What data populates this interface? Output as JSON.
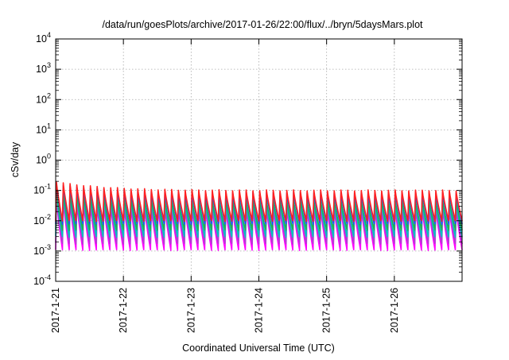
{
  "chart_data": {
    "type": "line",
    "title": "/data/run/goesPlots/archive/2017-01-26/22:00/flux/../bryn/5daysMars.plot",
    "xlabel": "Coordinated Universal Time (UTC)",
    "ylabel": "cSv/day",
    "y_scale": "log",
    "ylim": [
      0.0001,
      10000
    ],
    "y_ticks": [
      {
        "base": "10",
        "exp": "-4",
        "value": 0.0001
      },
      {
        "base": "10",
        "exp": "-3",
        "value": 0.001
      },
      {
        "base": "10",
        "exp": "-2",
        "value": 0.01
      },
      {
        "base": "10",
        "exp": "-1",
        "value": 0.1
      },
      {
        "base": "10",
        "exp": "0",
        "value": 1
      },
      {
        "base": "10",
        "exp": "1",
        "value": 10
      },
      {
        "base": "10",
        "exp": "2",
        "value": 100
      },
      {
        "base": "10",
        "exp": "3",
        "value": 1000
      },
      {
        "base": "10",
        "exp": "4",
        "value": 10000
      }
    ],
    "xlim": [
      "2017-01-21",
      "2017-01-27"
    ],
    "x_ticks": [
      "2017-1-21",
      "2017-1-22",
      "2017-1-23",
      "2017-1-24",
      "2017-1-25",
      "2017-1-26"
    ],
    "grid": true,
    "series": [
      {
        "color": "#ff00ff",
        "peak": 0.025,
        "trough": 0.0011
      },
      {
        "color": "#b040d0",
        "peak": 0.03,
        "trough": 0.0018
      },
      {
        "color": "#00c0c0",
        "peak": 0.04,
        "trough": 0.003
      },
      {
        "color": "#20b050",
        "peak": 0.05,
        "trough": 0.005
      },
      {
        "color": "#2050ff",
        "peak": 0.085,
        "trough": 0.008
      },
      {
        "color": "#ff2020",
        "peak": 0.1,
        "trough": 0.01
      }
    ],
    "pulse_period_days": 0.1
  }
}
